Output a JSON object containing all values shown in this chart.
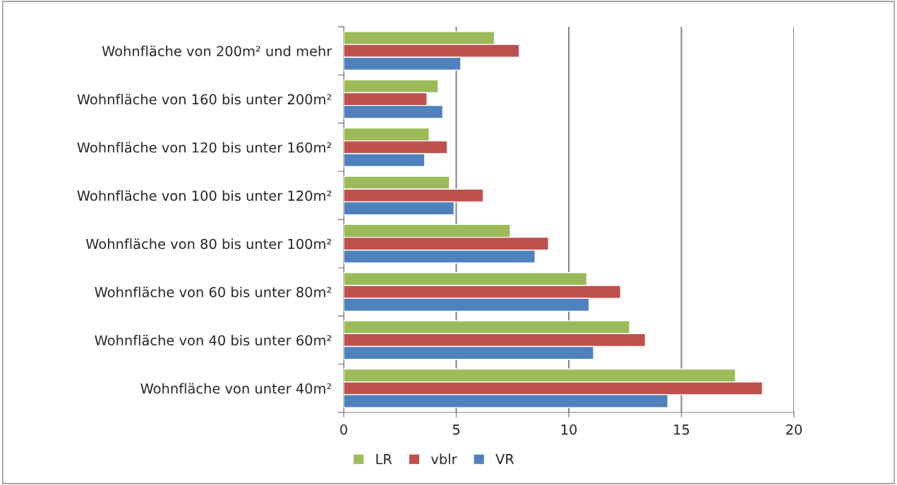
{
  "chart_data": {
    "type": "bar",
    "orientation": "horizontal",
    "categories": [
      "Wohnfläche von 200m² und mehr",
      "Wohnfläche von 160 bis unter 200m²",
      "Wohnfläche von 120 bis unter 160m²",
      "Wohnfläche von 100 bis unter 120m²",
      "Wohnfläche von 80 bis unter 100m²",
      "Wohnfläche von 60 bis unter 80m²",
      "Wohnfläche von 40 bis unter 60m²",
      "Wohnfläche von unter 40m²"
    ],
    "series": [
      {
        "name": "LR",
        "color": "#9bbb59",
        "values": [
          6.7,
          4.2,
          3.8,
          4.7,
          7.4,
          10.8,
          12.7,
          17.4
        ]
      },
      {
        "name": "vblr",
        "color": "#c0504d",
        "values": [
          7.8,
          3.7,
          4.6,
          6.2,
          9.1,
          12.3,
          13.4,
          18.6
        ]
      },
      {
        "name": "VR",
        "color": "#4f81bd",
        "values": [
          5.2,
          4.4,
          3.6,
          4.9,
          8.5,
          10.9,
          11.1,
          14.4
        ]
      }
    ],
    "xlim": [
      0,
      20
    ],
    "xticks": [
      0,
      5,
      10,
      15,
      20
    ],
    "grid": "x",
    "legend": "bottom"
  }
}
